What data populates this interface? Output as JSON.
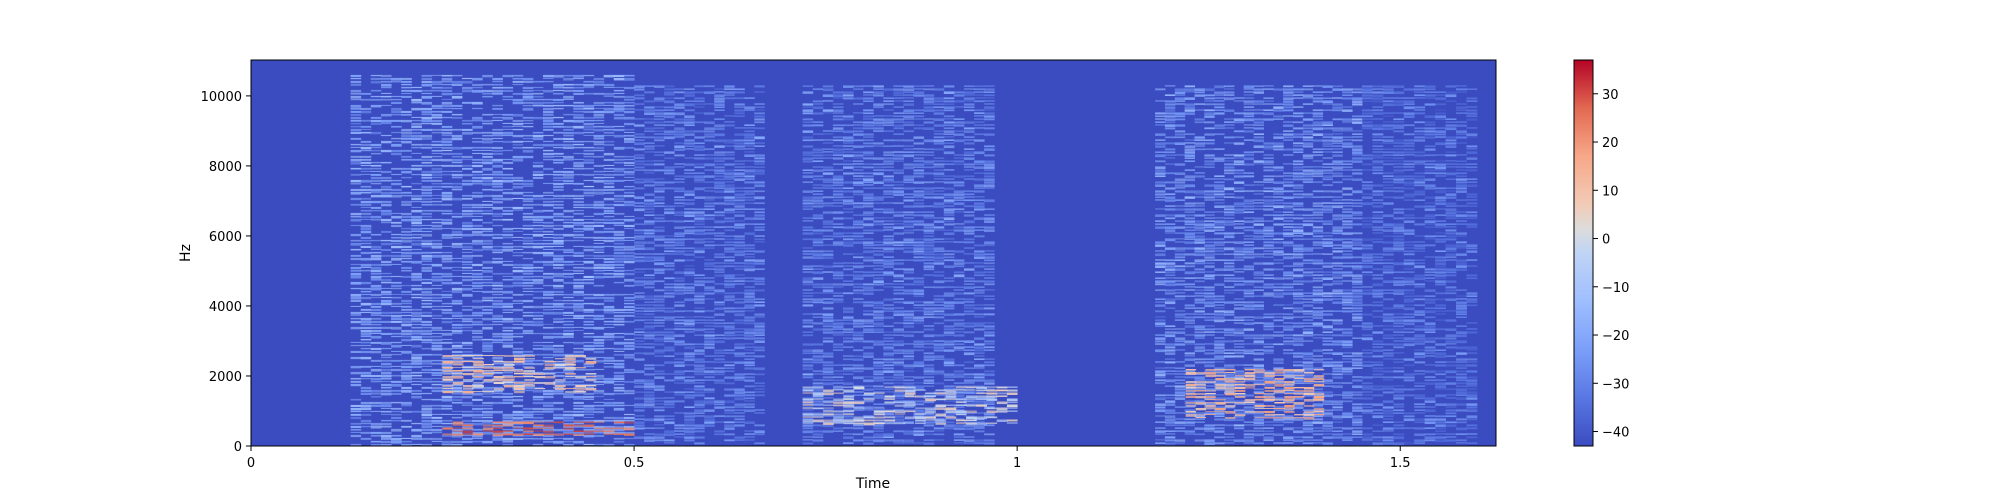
{
  "chart_data": {
    "type": "heatmap",
    "title": "",
    "xlabel": "Time",
    "ylabel": "Hz",
    "xlim": [
      0,
      1.625
    ],
    "ylim": [
      0,
      11025
    ],
    "xticks": [
      0,
      0.5,
      1,
      1.5
    ],
    "xtick_labels": [
      "0",
      "0.5",
      "1",
      "1.5"
    ],
    "yticks": [
      0,
      2000,
      4000,
      6000,
      8000,
      10000
    ],
    "ytick_labels": [
      "0",
      "2000",
      "4000",
      "6000",
      "8000",
      "10000"
    ],
    "colorscale": "coolwarm",
    "colorbar": {
      "range": [
        -43,
        37
      ],
      "ticks": [
        -40,
        -30,
        -20,
        -10,
        0,
        10,
        20,
        30
      ],
      "tick_labels": [
        "−40",
        "−30",
        "−20",
        "−10",
        "0",
        "10",
        "20",
        "30"
      ]
    },
    "energy_regions_db": [
      {
        "t": [
          0.13,
          0.5
        ],
        "hz": [
          0,
          10600
        ],
        "level_db": -20
      },
      {
        "t": [
          0.25,
          0.45
        ],
        "hz": [
          1500,
          2600
        ],
        "level_db": 8
      },
      {
        "t": [
          0.25,
          0.5
        ],
        "hz": [
          300,
          700
        ],
        "level_db": 25
      },
      {
        "t": [
          0.5,
          0.67
        ],
        "hz": [
          0,
          10300
        ],
        "level_db": -27
      },
      {
        "t": [
          0.72,
          0.97
        ],
        "hz": [
          0,
          10300
        ],
        "level_db": -26
      },
      {
        "t": [
          0.72,
          1.0
        ],
        "hz": [
          600,
          1700
        ],
        "level_db": 0
      },
      {
        "t": [
          1.18,
          1.45
        ],
        "hz": [
          0,
          10300
        ],
        "level_db": -22
      },
      {
        "t": [
          1.22,
          1.4
        ],
        "hz": [
          800,
          2200
        ],
        "level_db": 12
      },
      {
        "t": [
          1.45,
          1.6
        ],
        "hz": [
          0,
          10300
        ],
        "level_db": -30
      }
    ]
  }
}
